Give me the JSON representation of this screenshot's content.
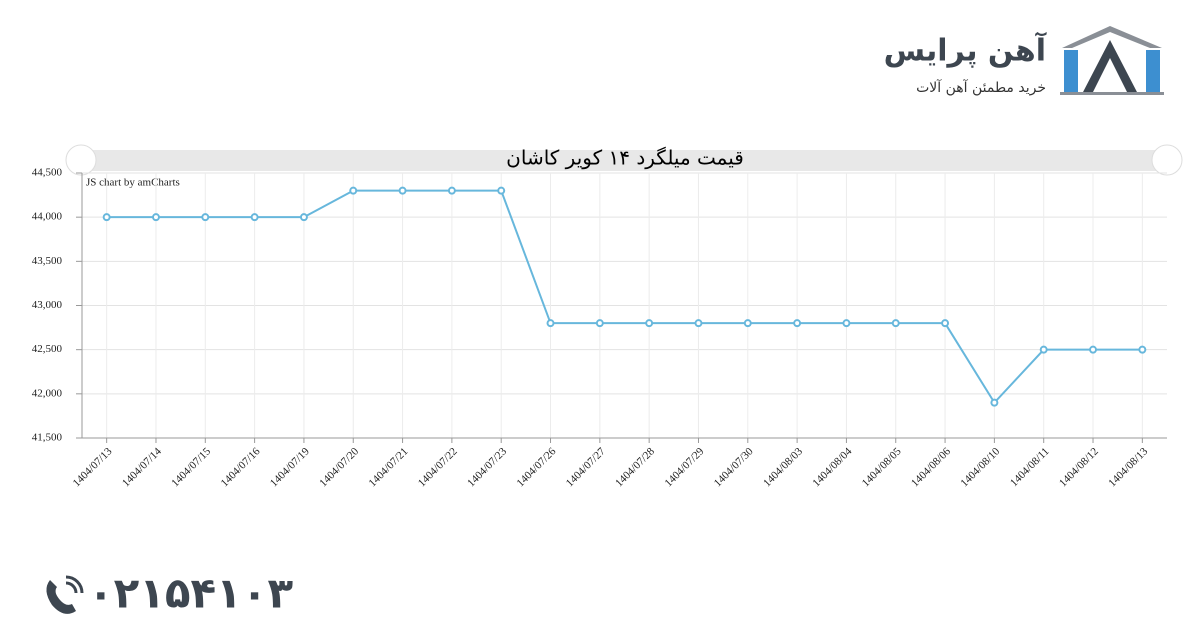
{
  "brand": {
    "name": "آهن پرایس",
    "tagline": "خرید مطمئن آهن آلات"
  },
  "phone": "۰۲۱۵۴۱۰۳",
  "chart_data": {
    "type": "line",
    "title": "قیمت میلگرد ۱۴ کویر کاشان",
    "credit": "JS chart by amCharts",
    "categories": [
      "1404/07/13",
      "1404/07/14",
      "1404/07/15",
      "1404/07/16",
      "1404/07/19",
      "1404/07/20",
      "1404/07/21",
      "1404/07/22",
      "1404/07/23",
      "1404/07/26",
      "1404/07/27",
      "1404/07/28",
      "1404/07/29",
      "1404/07/30",
      "1404/08/03",
      "1404/08/04",
      "1404/08/05",
      "1404/08/06",
      "1404/08/10",
      "1404/08/11",
      "1404/08/12",
      "1404/08/13"
    ],
    "values": [
      44000,
      44000,
      44000,
      44000,
      44000,
      44300,
      44300,
      44300,
      44300,
      42800,
      42800,
      42800,
      42800,
      42800,
      42800,
      42800,
      42800,
      42800,
      41900,
      42500,
      42500,
      42500
    ],
    "color": "#67b7dc",
    "ylim": [
      41500,
      44500
    ],
    "yticks": [
      {
        "value": 41500,
        "label": "41,500"
      },
      {
        "value": 42000,
        "label": "42,000"
      },
      {
        "value": 42500,
        "label": "42,500"
      },
      {
        "value": 43000,
        "label": "43,000"
      },
      {
        "value": 43500,
        "label": "43,500"
      },
      {
        "value": 44000,
        "label": "44,000"
      },
      {
        "value": 44500,
        "label": "44,500"
      }
    ],
    "grid": true
  }
}
